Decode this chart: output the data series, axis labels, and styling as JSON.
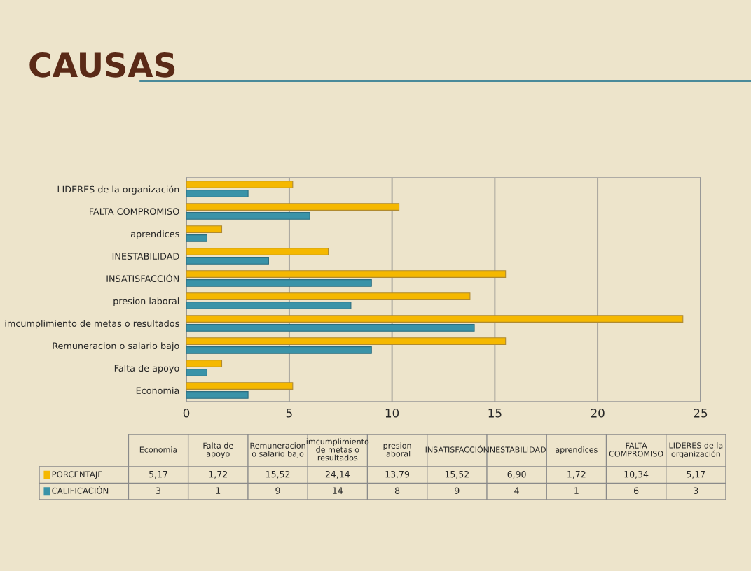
{
  "chart_data": {
    "type": "bar",
    "orientation": "horizontal",
    "title": "CAUSAS",
    "categories": [
      "LIDERES de la organización",
      "FALTA COMPROMISO",
      "aprendices",
      "INESTABILIDAD",
      "INSATISFACCIÓN",
      "presion laboral",
      "imcumplimiento de metas o resultados",
      "Remuneracion o salario bajo",
      "Falta de apoyo",
      "Economia"
    ],
    "series": [
      {
        "name": "PORCENTAJE",
        "color": "#f5b800",
        "values": [
          5.17,
          10.34,
          1.72,
          6.9,
          15.52,
          13.79,
          24.14,
          15.52,
          1.72,
          5.17
        ]
      },
      {
        "name": "CALIFICACIÓN",
        "color": "#3a93a8",
        "values": [
          3,
          6,
          1,
          4,
          9,
          8,
          14,
          9,
          1,
          3
        ]
      }
    ],
    "value_labels": [
      [
        "5,17",
        "10,34",
        "1,72",
        "6,90",
        "15,52",
        "13,79",
        "24,14",
        "15,52",
        "1,72",
        "5,17"
      ],
      [
        "3",
        "6",
        "1",
        "4",
        "9",
        "8",
        "14",
        "9",
        "1",
        "3"
      ]
    ],
    "xlim": [
      0,
      25
    ],
    "xticks": [
      0,
      5,
      10,
      15,
      20,
      25
    ],
    "grid": "x",
    "legend": "bottom"
  }
}
